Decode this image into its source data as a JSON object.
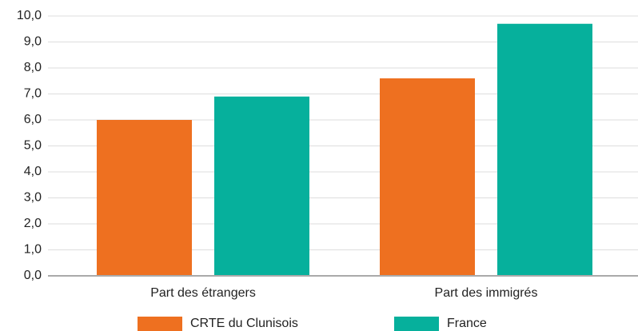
{
  "chart_data": {
    "type": "bar",
    "categories": [
      "Part des étrangers",
      "Part des immigrés"
    ],
    "series": [
      {
        "name": "CRTE du Clunisois",
        "color": "#ee7020",
        "values": [
          6.0,
          7.6
        ]
      },
      {
        "name": "France",
        "color": "#06b09c",
        "values": [
          6.9,
          9.7
        ]
      }
    ],
    "ylim": [
      0,
      10
    ],
    "yticks": [
      {
        "value": 0,
        "label": "0,0"
      },
      {
        "value": 1,
        "label": "1,0"
      },
      {
        "value": 2,
        "label": "2,0"
      },
      {
        "value": 3,
        "label": "3,0"
      },
      {
        "value": 4,
        "label": "4,0"
      },
      {
        "value": 5,
        "label": "5,0"
      },
      {
        "value": 6,
        "label": "6,0"
      },
      {
        "value": 7,
        "label": "7,0"
      },
      {
        "value": 8,
        "label": "8,0"
      },
      {
        "value": 9,
        "label": "9,0"
      },
      {
        "value": 10,
        "label": "10,0"
      }
    ],
    "grid": true,
    "legend": "bottom"
  }
}
